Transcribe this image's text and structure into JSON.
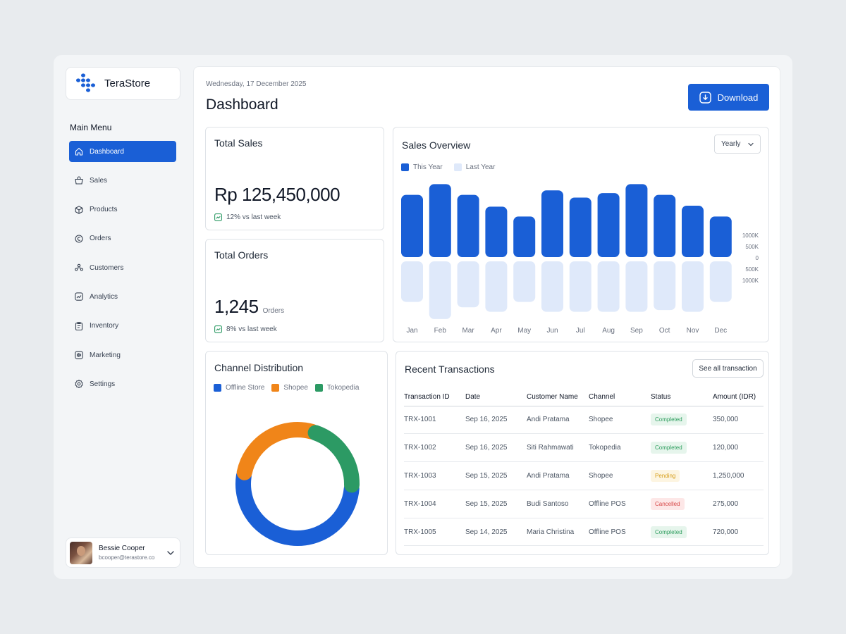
{
  "brand": {
    "name": "TeraStore"
  },
  "sidebar": {
    "menu_title": "Main Menu",
    "items": [
      {
        "label": "Dashboard",
        "icon": "home-icon",
        "active": true
      },
      {
        "label": "Sales",
        "icon": "sales-icon",
        "active": false
      },
      {
        "label": "Products",
        "icon": "box-icon",
        "active": false
      },
      {
        "label": "Orders",
        "icon": "orders-icon",
        "active": false
      },
      {
        "label": "Customers",
        "icon": "customers-icon",
        "active": false
      },
      {
        "label": "Analytics",
        "icon": "analytics-icon",
        "active": false
      },
      {
        "label": "Inventory",
        "icon": "inventory-icon",
        "active": false
      },
      {
        "label": "Marketing",
        "icon": "marketing-icon",
        "active": false
      },
      {
        "label": "Settings",
        "icon": "settings-icon",
        "active": false
      }
    ]
  },
  "user": {
    "name": "Bessie Cooper",
    "email": "bcooper@terastore.co"
  },
  "header": {
    "date": "Wednesday, 17 December 2025",
    "title": "Dashboard",
    "download_label": "Download"
  },
  "total_sales": {
    "title": "Total Sales",
    "value": "Rp 125,450,000",
    "trend": "12% vs last week"
  },
  "total_orders": {
    "title": "Total Orders",
    "value": "1,245",
    "unit": "Orders",
    "trend": "8% vs last week"
  },
  "sales_overview": {
    "title": "Sales Overview",
    "period": "Yearly",
    "legend": [
      "This Year",
      "Last Year"
    ],
    "y_ticks": [
      "1000K",
      "500K",
      "0",
      "500K",
      "1000K"
    ]
  },
  "chart_data": {
    "type": "bar",
    "categories": [
      "Jan",
      "Feb",
      "Mar",
      "Apr",
      "May",
      "Jun",
      "Jul",
      "Aug",
      "Sep",
      "Oct",
      "Nov",
      "Dec"
    ],
    "series": [
      {
        "name": "This Year",
        "values": [
          1380,
          1620,
          1380,
          1120,
          900,
          1480,
          1320,
          1420,
          1620,
          1380,
          1140,
          900
        ]
      },
      {
        "name": "Last Year",
        "values": [
          -900,
          -1280,
          -1020,
          -1120,
          -900,
          -1120,
          -1120,
          -1120,
          -1120,
          -1080,
          -1120,
          -900
        ]
      }
    ],
    "ylim": [
      -1300,
      1700
    ],
    "yticks": [
      1000,
      500,
      0,
      -500,
      -1000
    ],
    "colors": [
      "#1a5fd6",
      "#dfe9fa"
    ]
  },
  "channel": {
    "title": "Channel Distribution",
    "legend": [
      {
        "label": "Offline Store",
        "color": "#1a5fd6"
      },
      {
        "label": "Shopee",
        "color": "#f08519"
      },
      {
        "label": "Tokopedia",
        "color": "#2c9a64"
      }
    ],
    "shares": [
      0.52,
      0.27,
      0.21
    ]
  },
  "transactions": {
    "title": "Recent Transactions",
    "see_all": "See all transaction",
    "columns": [
      "Transaction ID",
      "Date",
      "Customer Name",
      "Channel",
      "Status",
      "Amount (IDR)"
    ],
    "rows": [
      {
        "id": "TRX-1001",
        "date": "Sep 16, 2025",
        "customer": "Andi Pratama",
        "channel": "Shopee",
        "status": "Completed",
        "status_type": "completed",
        "amount": "350,000"
      },
      {
        "id": "TRX-1002",
        "date": "Sep 16, 2025",
        "customer": "Siti Rahmawati",
        "channel": "Tokopedia",
        "status": "Completed",
        "status_type": "completed",
        "amount": "120,000"
      },
      {
        "id": "TRX-1003",
        "date": "Sep 15, 2025",
        "customer": "Andi Pratama",
        "channel": "Shopee",
        "status": "Pending",
        "status_type": "pending",
        "amount": "1,250,000"
      },
      {
        "id": "TRX-1004",
        "date": "Sep 15, 2025",
        "customer": "Budi Santoso",
        "channel": "Offline POS",
        "status": "Cancelled",
        "status_type": "cancelled",
        "amount": "275,000"
      },
      {
        "id": "TRX-1005",
        "date": "Sep 14, 2025",
        "customer": "Maria Christina",
        "channel": "Offline POS",
        "status": "Completed",
        "status_type": "completed",
        "amount": "720,000"
      }
    ]
  }
}
